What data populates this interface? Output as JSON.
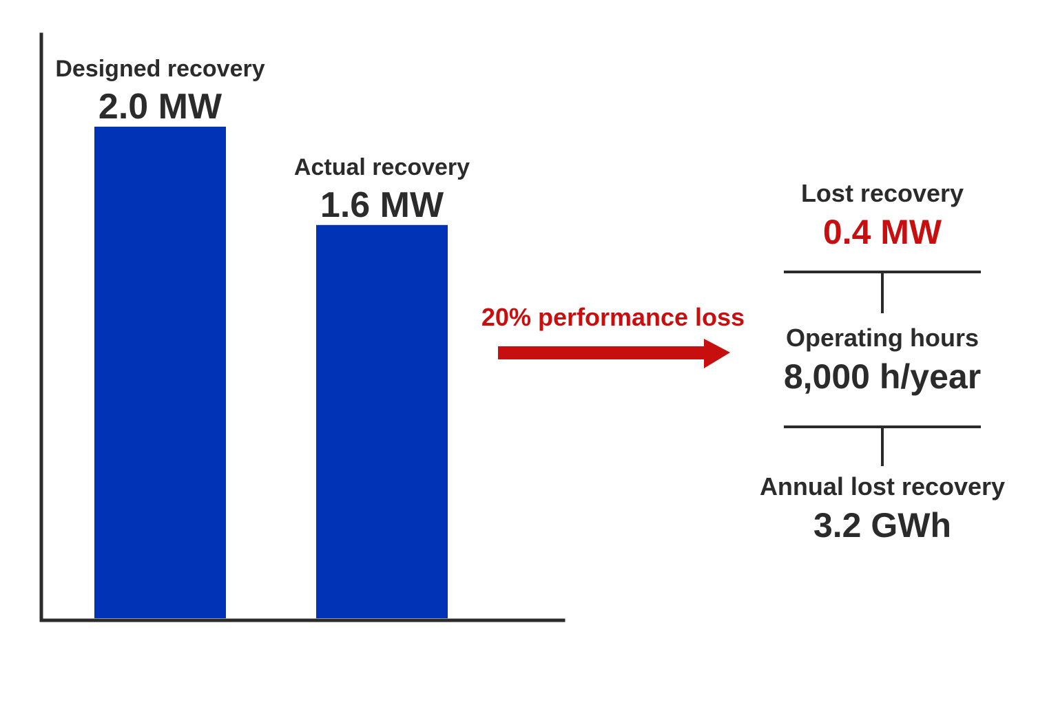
{
  "colors": {
    "bar": "#0033b5",
    "axis": "#2b2b2b",
    "accent": "#c80f10",
    "text": "#2b2b2b"
  },
  "chart_data": {
    "type": "bar",
    "categories": [
      "Designed recovery",
      "Actual recovery"
    ],
    "values": [
      2.0,
      1.6
    ],
    "value_labels": [
      "2.0 MW",
      "1.6 MW"
    ],
    "unit": "MW",
    "title": "",
    "xlabel": "",
    "ylabel": "",
    "ylim": [
      0,
      2.3
    ],
    "grid": false,
    "legend": "none"
  },
  "annotation": {
    "loss_text": "20% performance loss"
  },
  "flow": {
    "lost": {
      "label": "Lost recovery",
      "value": "0.4 MW"
    },
    "hours": {
      "label": "Operating hours",
      "value": "8,000 h/year"
    },
    "annual": {
      "label": "Annual lost recovery",
      "value": "3.2 GWh"
    }
  }
}
